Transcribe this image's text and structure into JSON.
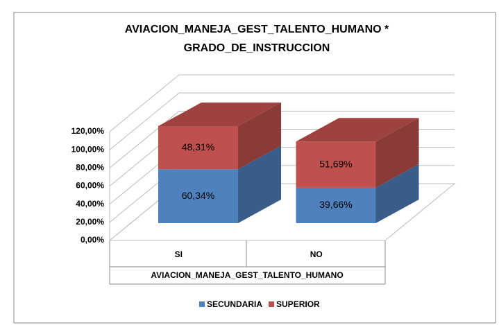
{
  "chart_data": {
    "type": "bar3d_stacked",
    "title": "AVIACION_MANEJA_GEST_TALENTO_HUMANO * GRADO_DE_INSTRUCCION",
    "x_label": "AVIACION_MANEJA_GEST_TALENTO_HUMANO",
    "categories": [
      "SI",
      "NO"
    ],
    "series": [
      {
        "name": "SECUNDARIA",
        "color": "#4f81bd",
        "values": [
          60.34,
          39.66
        ],
        "value_labels": [
          "60,34%",
          "39,66%"
        ]
      },
      {
        "name": "SUPERIOR",
        "color": "#c0504d",
        "values": [
          48.31,
          51.69
        ],
        "value_labels": [
          "48,31%",
          "51,69%"
        ]
      }
    ],
    "ylim": [
      0,
      120
    ],
    "yticks": [
      {
        "value": 0,
        "label": "0,00%"
      },
      {
        "value": 20,
        "label": "20,00%"
      },
      {
        "value": 40,
        "label": "40,00%"
      },
      {
        "value": 60,
        "label": "60,00%"
      },
      {
        "value": 80,
        "label": "80,00%"
      },
      {
        "value": 100,
        "label": "100,00%"
      },
      {
        "value": 120,
        "label": "120,00%"
      }
    ],
    "grid": true,
    "legend": "bottom"
  }
}
